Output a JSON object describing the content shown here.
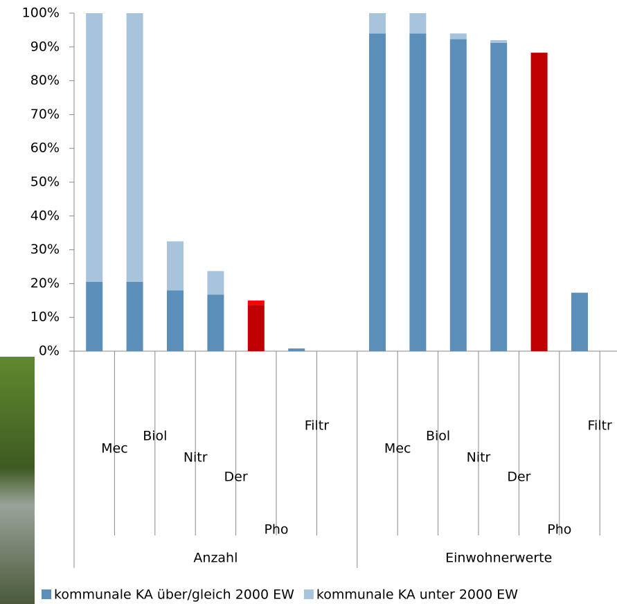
{
  "chart_data": {
    "type": "bar",
    "stacked": true,
    "groups": [
      "Anzahl",
      "Einwohnerwerte"
    ],
    "categories": [
      "Mec",
      "Biol",
      "Nitr",
      "Der",
      "Pho",
      "Filtr",
      null,
      "Mec",
      "Biol",
      "Nitr",
      "Der",
      "Pho",
      "Filtr",
      null
    ],
    "series": [
      {
        "name": "kommunale KA über/gleich 2000 EW",
        "color": "#5b8fb9",
        "highlight_color": "#c00000",
        "values": [
          20.5,
          20.5,
          18,
          16.7,
          13.7,
          0.8,
          null,
          94,
          94,
          92.3,
          91.2,
          88.3,
          17.3,
          null
        ]
      },
      {
        "name": "kommunale KA unter 2000 EW",
        "color": "#a7c4dc",
        "highlight_color": "#ff0000",
        "values": [
          79.5,
          79.5,
          14.5,
          7,
          1.3,
          0,
          null,
          6,
          6,
          1.7,
          0.8,
          0,
          0,
          null
        ]
      }
    ],
    "highlight": [
      4,
      11
    ],
    "ylim": [
      0,
      100
    ],
    "yticks": [
      {
        "value": 0,
        "label": "0%"
      },
      {
        "value": 10,
        "label": "10%"
      },
      {
        "value": 20,
        "label": "20%"
      },
      {
        "value": 30,
        "label": "30%"
      },
      {
        "value": 40,
        "label": "40%"
      },
      {
        "value": 50,
        "label": "50%"
      },
      {
        "value": 60,
        "label": "60%"
      },
      {
        "value": 70,
        "label": "70%"
      },
      {
        "value": 80,
        "label": "80%"
      },
      {
        "value": 90,
        "label": "90%"
      },
      {
        "value": 100,
        "label": "100%"
      }
    ]
  }
}
